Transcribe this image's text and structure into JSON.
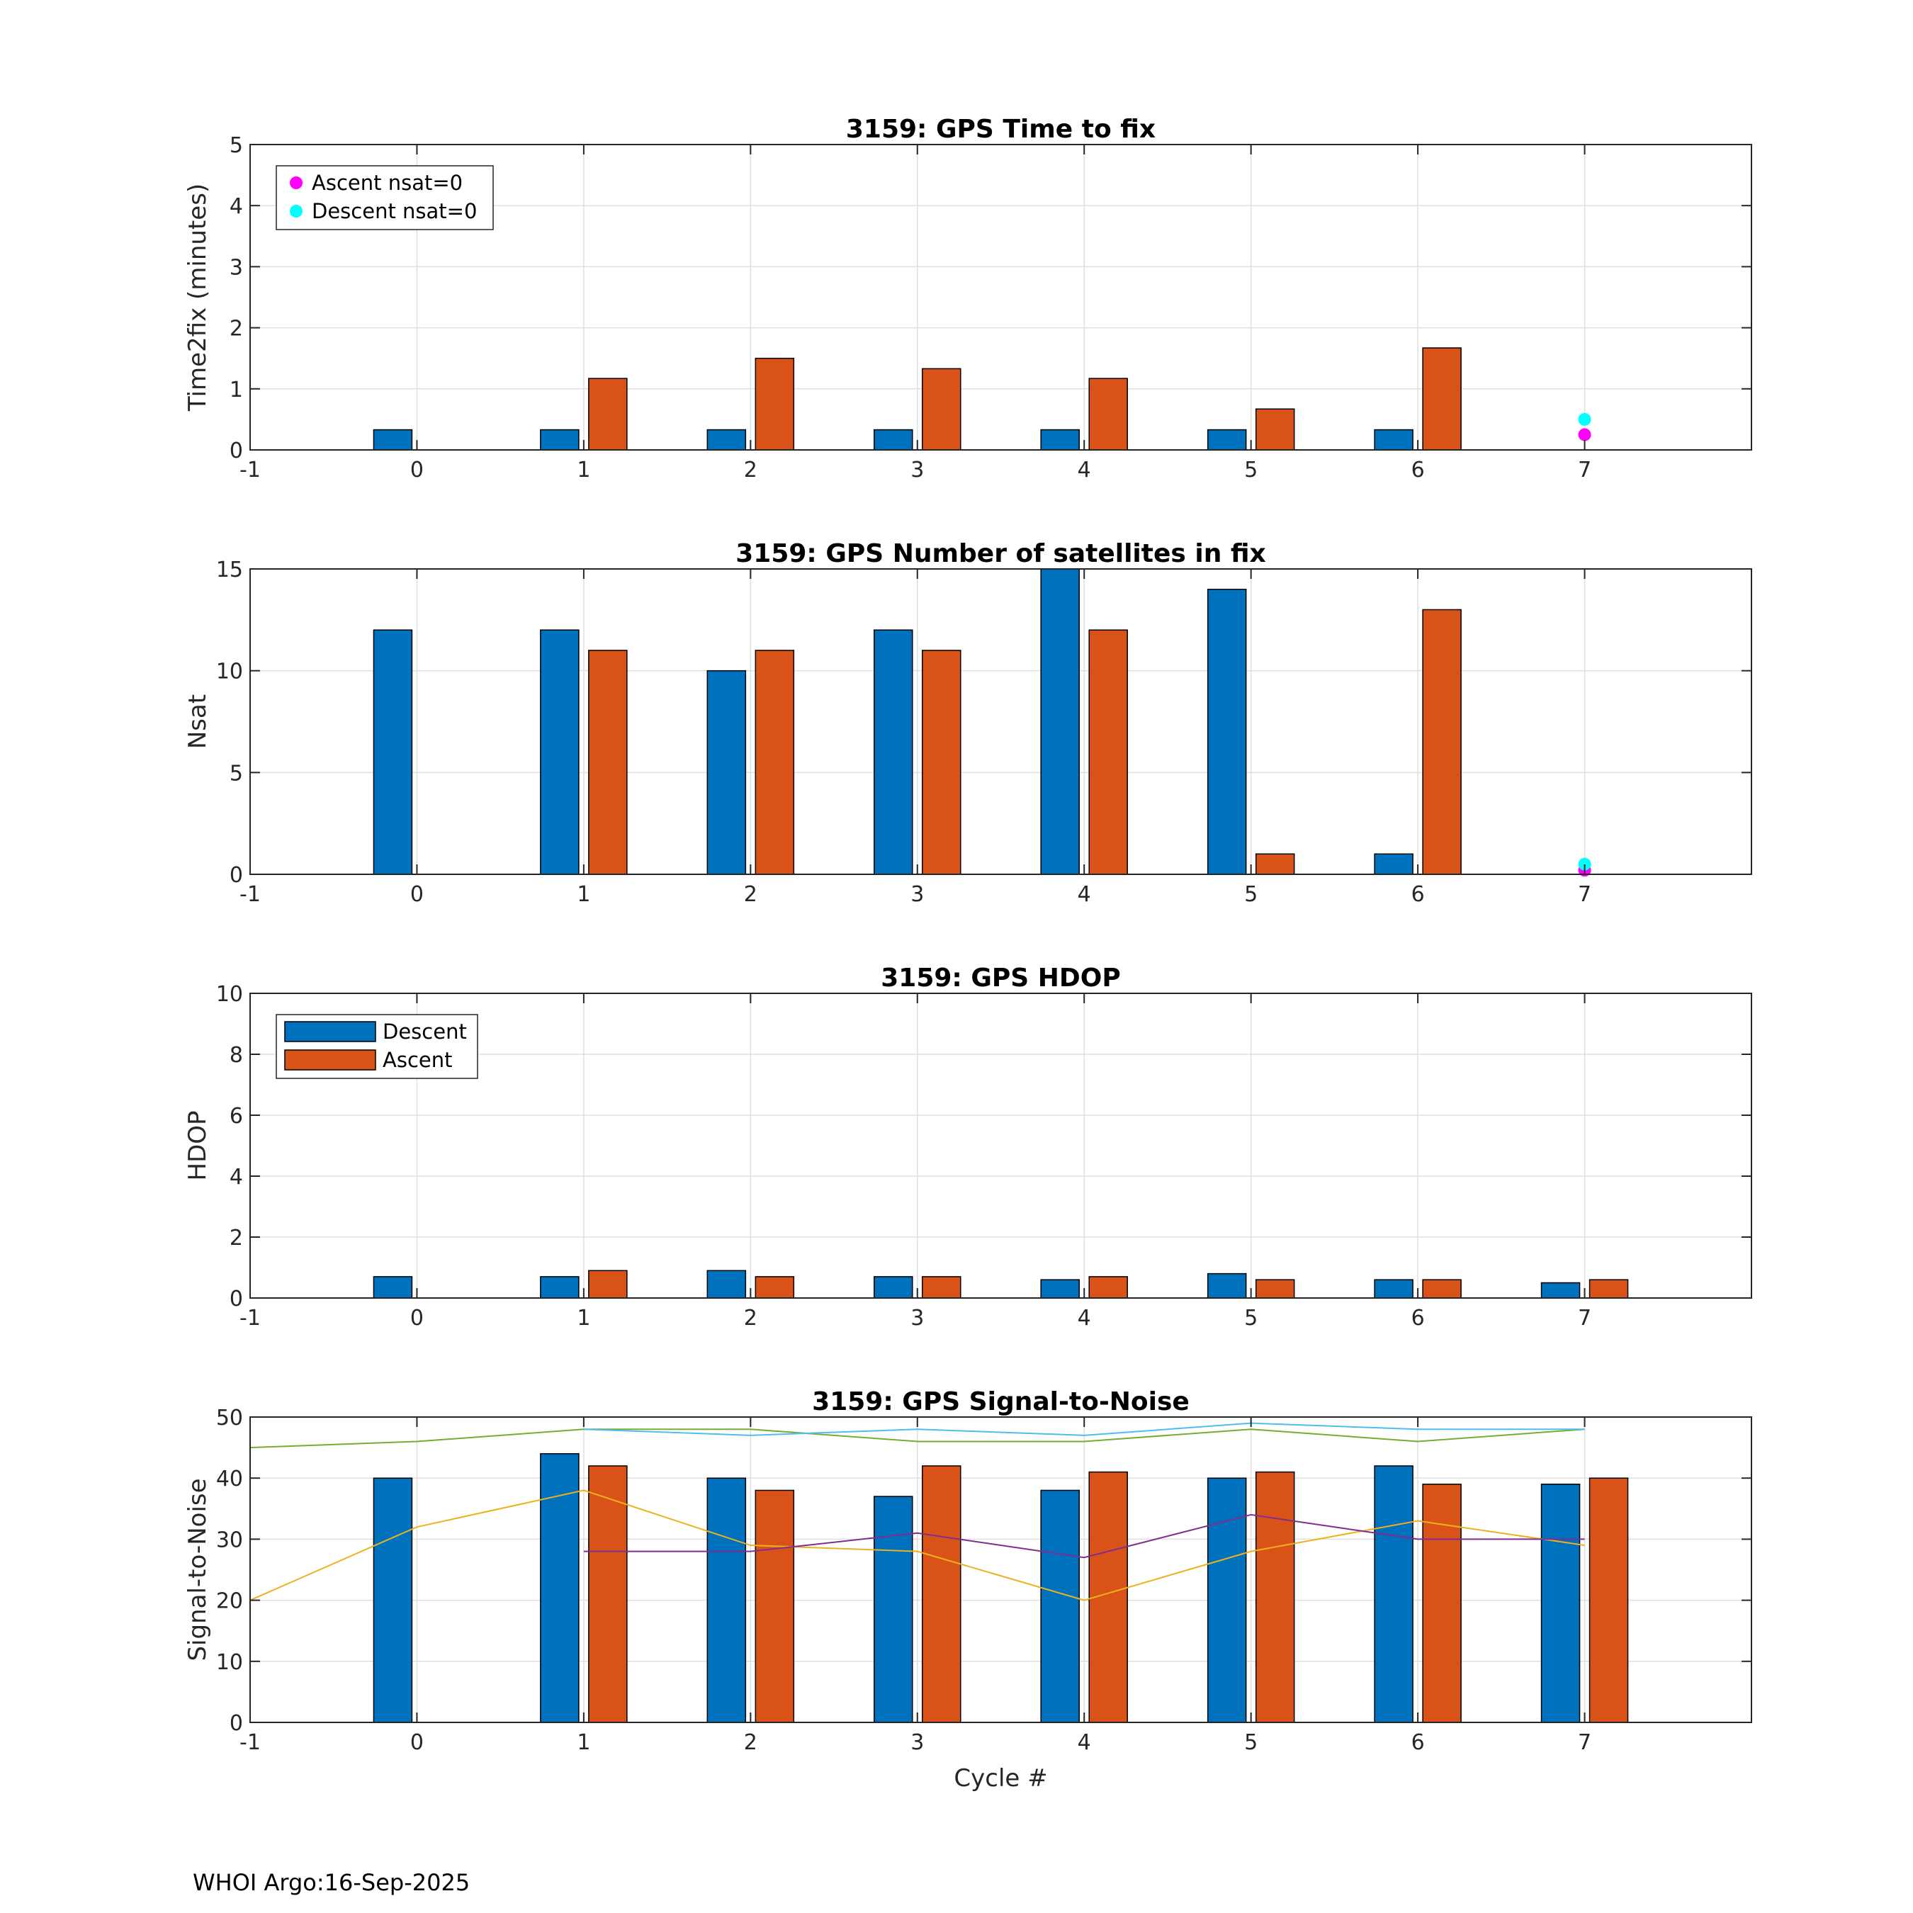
{
  "colors": {
    "descent": "#0072BD",
    "ascent": "#D95319",
    "ascent_nsat0": "#FF00FF",
    "descent_nsat0": "#00FFFF",
    "snr_green": "#77AC30",
    "snr_cyan": "#4DBEEE",
    "snr_orange": "#EDB120",
    "snr_purple": "#7E2F8E"
  },
  "footer": "WHOI Argo:16-Sep-2025",
  "chart_data": [
    {
      "type": "bar",
      "title": "3159: GPS Time to fix",
      "xlabel": "",
      "ylabel": "Time2fix (minutes)",
      "xlim": [
        -1,
        8
      ],
      "ylim": [
        0,
        5
      ],
      "xticks": [
        "-1",
        "0",
        "1",
        "2",
        "3",
        "4",
        "5",
        "6",
        "7"
      ],
      "yticks": [
        "0",
        "1",
        "2",
        "3",
        "4",
        "5"
      ],
      "grid": true,
      "legend_position": "top-left",
      "x": [
        0,
        1,
        2,
        3,
        4,
        5,
        6,
        7
      ],
      "series": [
        {
          "name": "Descent",
          "values": [
            0.33,
            0.33,
            0.33,
            0.33,
            0.33,
            0.33,
            0.33,
            null
          ]
        },
        {
          "name": "Ascent",
          "values": [
            null,
            1.17,
            1.5,
            1.33,
            1.17,
            0.67,
            1.67,
            null
          ]
        }
      ],
      "markers": [
        {
          "name": "Ascent nsat=0",
          "x": 7,
          "y": 0.25
        },
        {
          "name": "Descent nsat=0",
          "x": 7,
          "y": 0.5
        }
      ],
      "legend": [
        "Ascent nsat=0",
        "Descent nsat=0"
      ]
    },
    {
      "type": "bar",
      "title": "3159: GPS Number of satellites in fix",
      "xlabel": "",
      "ylabel": "Nsat",
      "xlim": [
        -1,
        8
      ],
      "ylim": [
        0,
        15
      ],
      "xticks": [
        "-1",
        "0",
        "1",
        "2",
        "3",
        "4",
        "5",
        "6",
        "7"
      ],
      "yticks": [
        "0",
        "5",
        "10",
        "15"
      ],
      "grid": true,
      "x": [
        0,
        1,
        2,
        3,
        4,
        5,
        6,
        7
      ],
      "series": [
        {
          "name": "Descent",
          "values": [
            12,
            12,
            10,
            12,
            15,
            14,
            1,
            null
          ]
        },
        {
          "name": "Ascent",
          "values": [
            null,
            11,
            11,
            11,
            12,
            1,
            13,
            null
          ]
        }
      ],
      "markers": [
        {
          "name": "Ascent nsat=0",
          "x": 7,
          "y": 0.2
        },
        {
          "name": "Descent nsat=0",
          "x": 7,
          "y": 0.5
        }
      ],
      "legend": []
    },
    {
      "type": "bar",
      "title": "3159: GPS HDOP",
      "xlabel": "",
      "ylabel": "HDOP",
      "xlim": [
        -1,
        8
      ],
      "ylim": [
        0,
        10
      ],
      "xticks": [
        "-1",
        "0",
        "1",
        "2",
        "3",
        "4",
        "5",
        "6",
        "7"
      ],
      "yticks": [
        "0",
        "2",
        "4",
        "6",
        "8",
        "10"
      ],
      "grid": true,
      "legend_position": "top-left",
      "x": [
        0,
        1,
        2,
        3,
        4,
        5,
        6,
        7
      ],
      "series": [
        {
          "name": "Descent",
          "values": [
            0.7,
            0.7,
            0.9,
            0.7,
            0.6,
            0.8,
            0.6,
            0.5
          ]
        },
        {
          "name": "Ascent",
          "values": [
            null,
            0.9,
            0.7,
            0.7,
            0.7,
            0.6,
            0.6,
            0.6
          ]
        }
      ],
      "markers": [],
      "legend": [
        "Descent",
        "Ascent"
      ]
    },
    {
      "type": "bar",
      "title": "3159: GPS Signal-to-Noise",
      "xlabel": "Cycle #",
      "ylabel": "Signal-to-Noise",
      "xlim": [
        -1,
        8
      ],
      "ylim": [
        0,
        50
      ],
      "xticks": [
        "-1",
        "0",
        "1",
        "2",
        "3",
        "4",
        "5",
        "6",
        "7"
      ],
      "yticks": [
        "0",
        "10",
        "20",
        "30",
        "40",
        "50"
      ],
      "grid": true,
      "x": [
        0,
        1,
        2,
        3,
        4,
        5,
        6,
        7
      ],
      "series": [
        {
          "name": "Descent",
          "values": [
            40,
            44,
            40,
            37,
            38,
            40,
            42,
            39
          ]
        },
        {
          "name": "Ascent",
          "values": [
            null,
            42,
            38,
            42,
            41,
            41,
            39,
            40
          ]
        }
      ],
      "lines": [
        {
          "color": "snr_green",
          "x": [
            -1,
            0,
            1,
            2,
            3,
            4,
            5,
            6,
            7
          ],
          "y": [
            45,
            46,
            48,
            48,
            46,
            46,
            48,
            46,
            48
          ]
        },
        {
          "color": "snr_cyan",
          "x": [
            1,
            2,
            3,
            4,
            5,
            6,
            7
          ],
          "y": [
            48,
            47,
            48,
            47,
            49,
            48,
            48
          ]
        },
        {
          "color": "snr_orange",
          "x": [
            -1,
            0,
            1,
            2,
            3,
            4,
            5,
            6,
            7
          ],
          "y": [
            20,
            32,
            38,
            29,
            28,
            20,
            28,
            33,
            29
          ]
        },
        {
          "color": "snr_purple",
          "x": [
            1,
            2,
            3,
            4,
            5,
            6,
            7
          ],
          "y": [
            28,
            28,
            31,
            27,
            34,
            30,
            30
          ]
        }
      ],
      "markers": [],
      "legend": []
    }
  ]
}
